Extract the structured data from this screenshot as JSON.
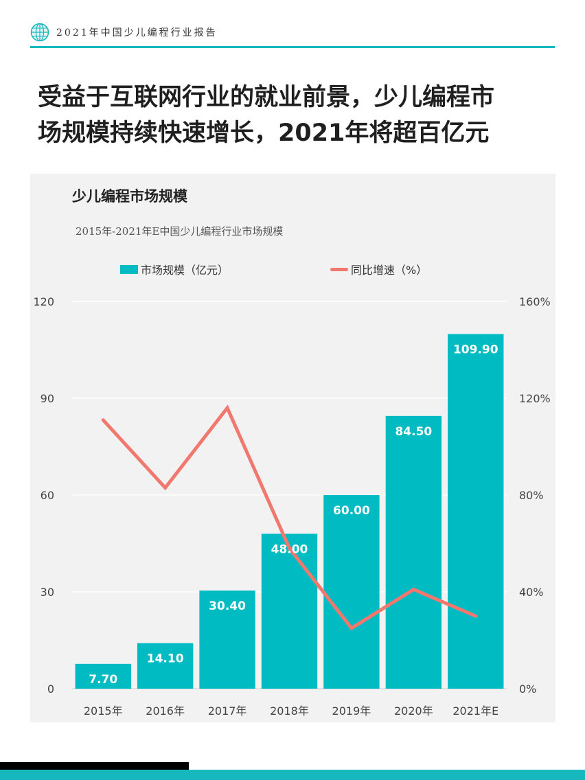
{
  "header": {
    "title": "2021年中国少儿编程行业报告",
    "logo_icon": "globe-icon"
  },
  "headline": {
    "line1": "受益于互联网行业的就业前景，少儿编程市",
    "line2": "场规模持续快速增长，2021年将超百亿元"
  },
  "colors": {
    "accent": "#17b8bd",
    "bar": "#00bcc2",
    "line": "#f0786f",
    "panel": "#f2f2f2"
  },
  "chart_data": {
    "type": "bar",
    "heading": "少儿编程市场规模",
    "title": "2015年-2021年E中国少儿编程行业市场规模",
    "categories": [
      "2015年",
      "2016年",
      "2017年",
      "2018年",
      "2019年",
      "2020年",
      "2021年E"
    ],
    "series": [
      {
        "name": "市场规模（亿元）",
        "type": "bar",
        "axis": "left",
        "values": [
          7.7,
          14.1,
          30.4,
          48.0,
          60.0,
          84.5,
          109.9
        ],
        "labels": [
          "7.70",
          "14.10",
          "30.40",
          "48.00",
          "60.00",
          "84.50",
          "109.90"
        ]
      },
      {
        "name": "同比增速（%）",
        "type": "line",
        "axis": "right",
        "values": [
          111,
          83,
          116,
          58,
          25,
          41,
          30
        ]
      }
    ],
    "ylim_left": [
      0,
      120
    ],
    "yticks_left": [
      "0",
      "30",
      "60",
      "90",
      "120"
    ],
    "ylim_right": [
      0,
      160
    ],
    "yticks_right": [
      "0%",
      "40%",
      "80%",
      "120%",
      "160%"
    ],
    "grid": true,
    "legend_position": "top"
  }
}
